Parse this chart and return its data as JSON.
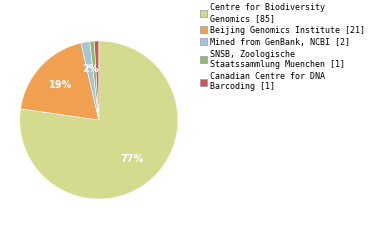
{
  "labels": [
    "Centre for Biodiversity\nGenomics [85]",
    "Beijing Genomics Institute [21]",
    "Mined from GenBank, NCBI [2]",
    "SNSB, Zoologische\nStaatssammlung Muenchen [1]",
    "Canadian Centre for DNA\nBarcoding [1]"
  ],
  "values": [
    85,
    21,
    2,
    1,
    1
  ],
  "colors": [
    "#d4db8e",
    "#f0a050",
    "#a8c4d8",
    "#8fbb6e",
    "#cc5555"
  ],
  "background_color": "#ffffff",
  "fontsize": 6.5,
  "startangle": 90,
  "pct_threshold": 1.5
}
